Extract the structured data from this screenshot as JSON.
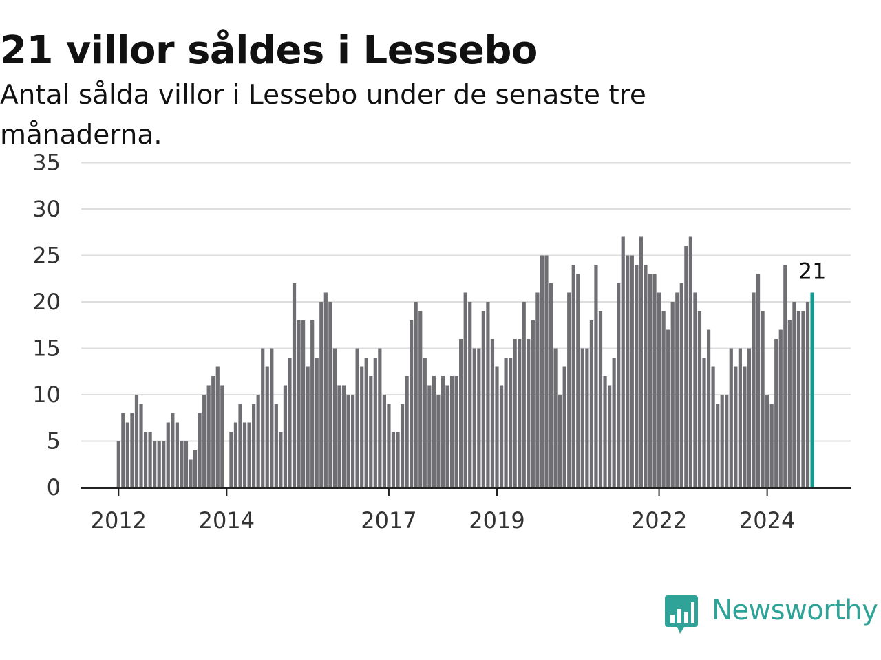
{
  "header": {
    "title": "21 villor såldes i Lessebo",
    "subtitle": "Antal sålda villor i Lessebo under de senaste tre månaderna."
  },
  "logo": {
    "text": "Newsworthy",
    "icon": "newsworthy-bar-chart-icon",
    "color": "#2fa397"
  },
  "colors": {
    "bar": "#6f6e73",
    "highlight": "#149a8e",
    "grid": "#dddddd",
    "axis": "#222222"
  },
  "chart_data": {
    "type": "bar",
    "ylim": [
      0,
      35
    ],
    "y_ticks": [
      0,
      5,
      10,
      15,
      20,
      25,
      30,
      35
    ],
    "x_tick_labels": [
      "2012",
      "2014",
      "2017",
      "2019",
      "2022",
      "2024"
    ],
    "x_tick_month_index": [
      0,
      24,
      60,
      84,
      120,
      144
    ],
    "start": "2012-01",
    "values": [
      5,
      8,
      7,
      8,
      10,
      9,
      6,
      6,
      5,
      5,
      5,
      7,
      8,
      7,
      5,
      5,
      3,
      4,
      8,
      10,
      11,
      12,
      13,
      11,
      0,
      6,
      7,
      9,
      7,
      7,
      9,
      10,
      15,
      13,
      15,
      9,
      6,
      11,
      14,
      22,
      18,
      18,
      13,
      18,
      14,
      20,
      21,
      20,
      15,
      11,
      11,
      10,
      10,
      15,
      13,
      14,
      12,
      14,
      15,
      10,
      9,
      6,
      6,
      9,
      12,
      18,
      20,
      19,
      14,
      11,
      12,
      10,
      12,
      11,
      12,
      12,
      16,
      21,
      20,
      15,
      15,
      19,
      20,
      16,
      13,
      11,
      14,
      14,
      16,
      16,
      20,
      16,
      18,
      21,
      25,
      25,
      22,
      15,
      10,
      13,
      21,
      24,
      23,
      15,
      15,
      18,
      24,
      19,
      12,
      11,
      14,
      22,
      27,
      25,
      25,
      24,
      27,
      24,
      23,
      23,
      21,
      19,
      17,
      20,
      21,
      22,
      26,
      27,
      21,
      19,
      14,
      17,
      13,
      9,
      10,
      10,
      15,
      13,
      15,
      13,
      15,
      21,
      23,
      19,
      10,
      9,
      16,
      17,
      24,
      18,
      20,
      19,
      19,
      20,
      21
    ],
    "highlight": {
      "index": 154,
      "label": "21"
    }
  }
}
